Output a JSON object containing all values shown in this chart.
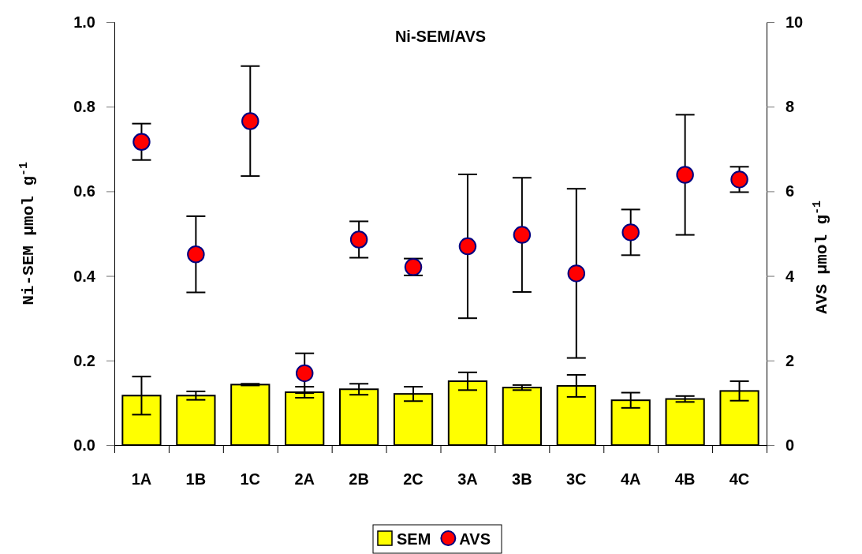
{
  "chart_data": {
    "type": "bar",
    "title": "Ni-SEM/AVS",
    "ylabel": "Ni-SEM μmol g$^{-1}$",
    "y2label": "AVS μmol g$^{-1}$",
    "categories": [
      "1A",
      "1B",
      "1C",
      "2A",
      "2B",
      "2C",
      "3A",
      "3B",
      "3C",
      "4A",
      "4B",
      "4C"
    ],
    "series": [
      {
        "name": "SEM",
        "color": "#ffff00",
        "values": [
          0.117,
          0.117,
          0.143,
          0.125,
          0.132,
          0.121,
          0.151,
          0.136,
          0.14,
          0.106,
          0.109,
          0.128
        ],
        "errors": [
          0.045,
          0.01,
          0.002,
          0.013,
          0.013,
          0.017,
          0.021,
          0.006,
          0.026,
          0.018,
          0.007,
          0.023
        ]
      },
      {
        "name": "AVS",
        "type": "scatter",
        "axis": "y2",
        "color": "#ff0000",
        "marker": "circle",
        "values": [
          7.17,
          4.51,
          7.66,
          1.7,
          4.86,
          4.21,
          4.7,
          4.97,
          4.06,
          5.03,
          6.39,
          6.28
        ],
        "errors": [
          0.43,
          0.9,
          1.3,
          0.47,
          0.43,
          0.2,
          1.7,
          1.35,
          2.0,
          0.54,
          1.42,
          0.3
        ]
      }
    ],
    "ylim": [
      0,
      1
    ],
    "yticks": [
      {
        "value": 0,
        "label": "0.0"
      },
      {
        "value": 0.2,
        "label": "0.2"
      },
      {
        "value": 0.4,
        "label": "0.4"
      },
      {
        "value": 0.6,
        "label": "0.6"
      },
      {
        "value": 0.8,
        "label": "0.8"
      },
      {
        "value": 1,
        "label": "1.0"
      }
    ],
    "y2lim": [
      0,
      10
    ],
    "y2ticks": [
      0,
      2,
      4,
      6,
      8,
      10
    ],
    "legend": "bottom",
    "grid": false
  }
}
